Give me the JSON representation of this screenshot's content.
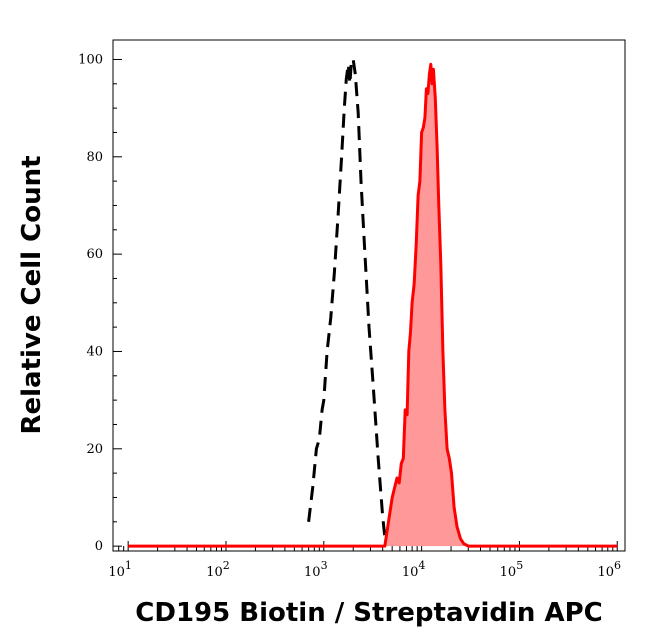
{
  "chart_data": {
    "type": "area",
    "title": "",
    "xlabel": "CD195 Biotin / Streptavidin APC",
    "ylabel": "Relative Cell Count",
    "xscale": "log",
    "xlim": [
      7,
      1200000
    ],
    "ylim": [
      -1,
      104
    ],
    "yticks": [
      0,
      20,
      40,
      60,
      80,
      100
    ],
    "xticks": [
      {
        "base": "10",
        "exp": "1",
        "value": 10
      },
      {
        "base": "10",
        "exp": "2",
        "value": 100
      },
      {
        "base": "10",
        "exp": "3",
        "value": 1000
      },
      {
        "base": "10",
        "exp": "4",
        "value": 10000
      },
      {
        "base": "10",
        "exp": "5",
        "value": 100000
      },
      {
        "base": "10",
        "exp": "6",
        "value": 1000000
      }
    ],
    "grid": false,
    "legend": "none",
    "series": [
      {
        "style": "dashed-outline",
        "color": "#000000",
        "x": [
          700,
          770,
          840,
          900,
          960,
          1000,
          1080,
          1180,
          1280,
          1400,
          1520,
          1620,
          1700,
          1780,
          1850,
          1920,
          2000,
          2100,
          2250,
          2400,
          2600,
          2900,
          3200,
          3600,
          4000,
          4300
        ],
        "y": [
          5,
          12,
          20,
          22,
          28,
          30,
          40,
          47,
          56,
          68,
          80,
          90,
          96,
          99,
          95,
          100,
          100,
          97,
          89,
          75,
          62,
          45,
          33,
          18,
          6,
          0
        ]
      },
      {
        "style": "filled-solid",
        "color": "#ff0000",
        "fill": "#ff9999",
        "x": [
          10,
          100,
          1000,
          4200,
          5000,
          5300,
          5600,
          5900,
          6200,
          6500,
          6800,
          7100,
          7400,
          7700,
          8000,
          8400,
          8800,
          9200,
          9600,
          10000,
          10400,
          10800,
          11200,
          11600,
          12000,
          12400,
          12800,
          13200,
          13800,
          14400,
          15000,
          15700,
          16500,
          17300,
          18200,
          19200,
          20200,
          21500,
          23000,
          25000,
          27000,
          30000,
          40000,
          100000,
          1000000
        ],
        "y": [
          0,
          0,
          0,
          0,
          10,
          12,
          14,
          13,
          17,
          18,
          28,
          27,
          40,
          44,
          50,
          54,
          62,
          72,
          75,
          85,
          86,
          88,
          94,
          93,
          97,
          99,
          95,
          98,
          92,
          82,
          70,
          58,
          40,
          28,
          20,
          18,
          15,
          8,
          4,
          1.5,
          0.5,
          0,
          0,
          0,
          0
        ]
      }
    ]
  }
}
